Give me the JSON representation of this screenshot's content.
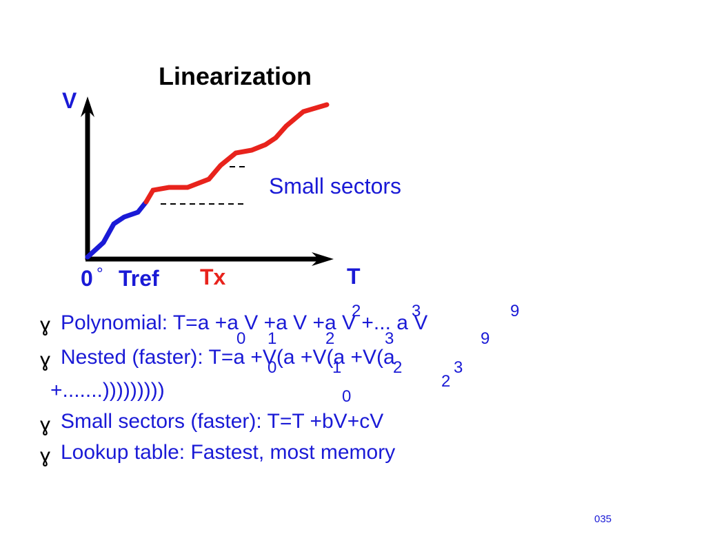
{
  "slide": {
    "title": "Linearization",
    "page_number": "035"
  },
  "diagram": {
    "y_axis_label": "V",
    "x_axis_label": "T",
    "origin_label": "0",
    "degree_symbol": "°",
    "tref_label": "Tref",
    "tx_label": "Tx",
    "sectors_label": "Small sectors",
    "colors": {
      "blue": "#1a1ad6",
      "red": "#e8231c",
      "axis": "#000000"
    }
  },
  "bullets": {
    "marker": "ɣ",
    "polynomial": {
      "text": "Polynomial: T=a +a V +a V +a V +... a V",
      "sups": [
        "2",
        "3",
        "9"
      ],
      "subs": [
        "0",
        "1",
        "2",
        "3",
        "9"
      ]
    },
    "nested": {
      "text": "Nested (faster): T=a +V(a +V(a +V(a",
      "continuation": "+.......)))))))))",
      "sups": [
        "3"
      ],
      "subs": [
        "0",
        "1",
        "2",
        "2",
        "0"
      ]
    },
    "sectors": {
      "text": "Small sectors (faster): T=T +bV+cV"
    },
    "lookup": {
      "text": "Lookup table:  Fastest, most memory"
    }
  }
}
